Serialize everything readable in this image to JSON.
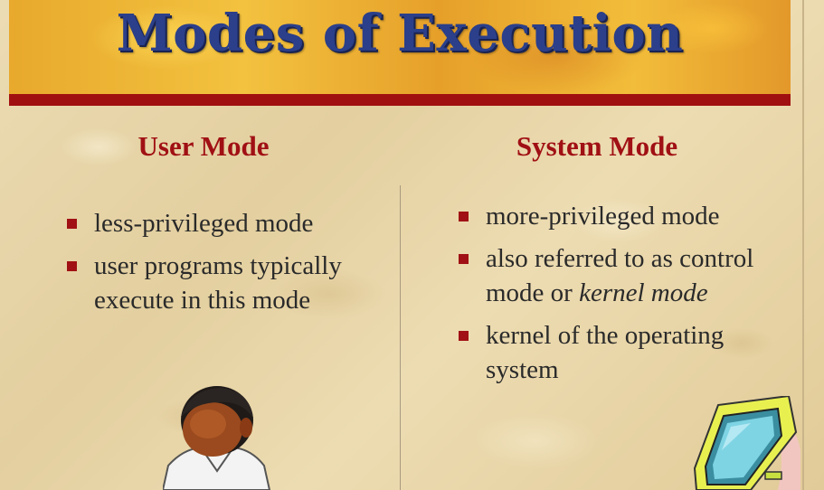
{
  "slide": {
    "title": "Modes of Execution"
  },
  "user_mode": {
    "heading": "User Mode",
    "bullets": [
      {
        "text": "less-privileged mode"
      },
      {
        "text": "user programs typically execute in this mode"
      }
    ]
  },
  "system_mode": {
    "heading": "System Mode",
    "bullets": [
      {
        "text": "more-privileged mode"
      },
      {
        "pre": "also referred to as control mode or ",
        "emph": "kernel mode"
      },
      {
        "text": "kernel of the operating system"
      }
    ]
  },
  "clipart": {
    "left": "person-icon",
    "right": "computer-monitor-icon"
  },
  "colors": {
    "title_text": "#2b3f8a",
    "title_bar": "#a11010",
    "heading": "#a01014",
    "bullet": "#a01014"
  }
}
